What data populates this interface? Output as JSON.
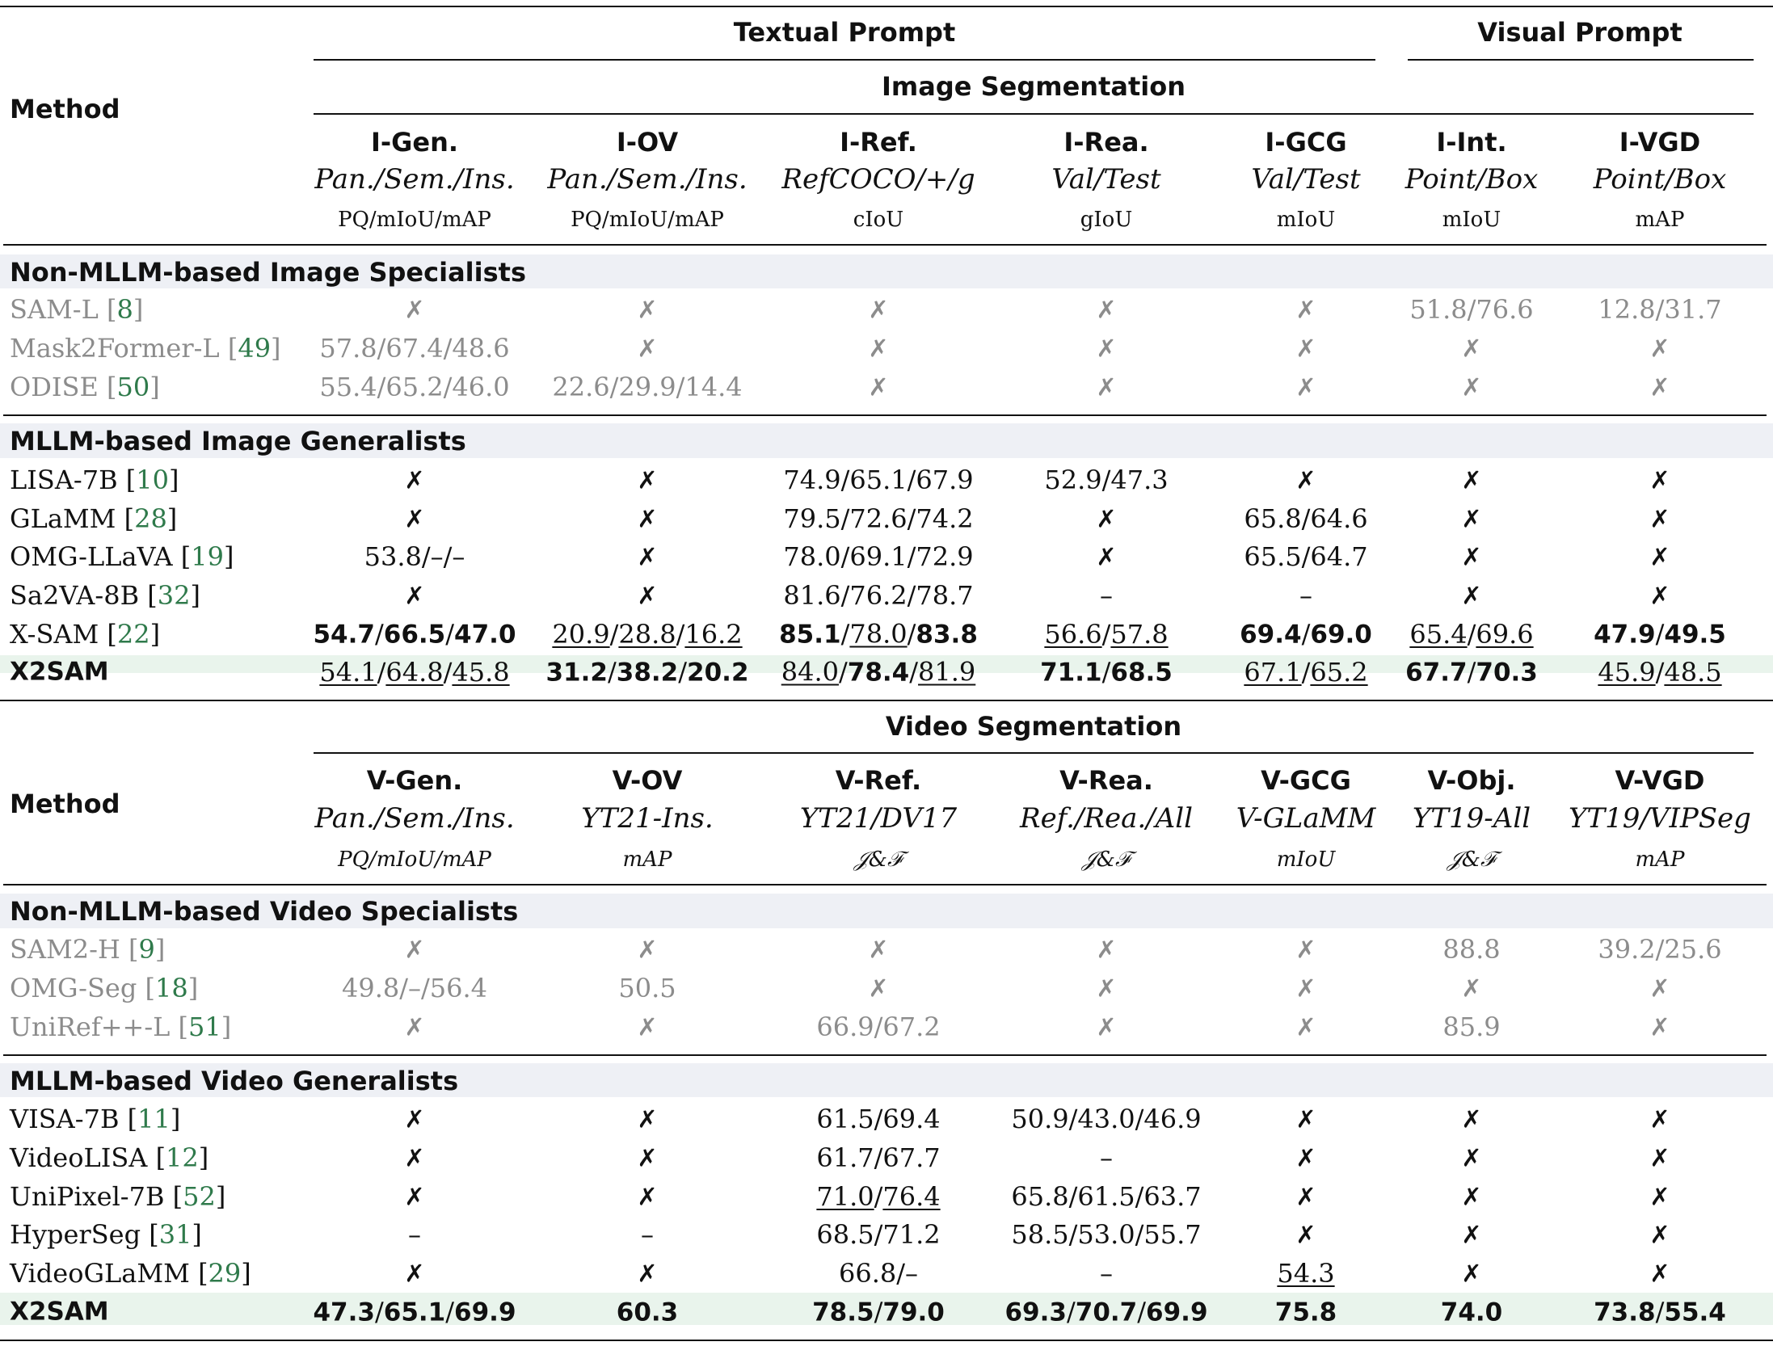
{
  "colors": {
    "section_band": "#eef0f5",
    "highlight_band": "#e9f4ec",
    "specialist_text": "#8c8c8c",
    "citation": "#2f7a4b",
    "rule": "#111111"
  },
  "header": {
    "method_label": "Method",
    "textual_prompt": "Textual Prompt",
    "visual_prompt": "Visual Prompt",
    "image_segmentation": "Image Segmentation",
    "video_segmentation": "Video Segmentation"
  },
  "image_columns": [
    {
      "name": "I-Gen.",
      "sub": "Pan./Sem./Ins.",
      "metric": "PQ/mIoU/mAP"
    },
    {
      "name": "I-OV",
      "sub": "Pan./Sem./Ins.",
      "metric": "PQ/mIoU/mAP"
    },
    {
      "name": "I-Ref.",
      "sub": "RefCOCO/+/g",
      "metric": "cIoU"
    },
    {
      "name": "I-Rea.",
      "sub": "Val/Test",
      "metric": "gIoU"
    },
    {
      "name": "I-GCG",
      "sub": "Val/Test",
      "metric": "mIoU"
    },
    {
      "name": "I-Int.",
      "sub": "Point/Box",
      "metric": "mIoU"
    },
    {
      "name": "I-VGD",
      "sub": "Point/Box",
      "metric": "mAP"
    }
  ],
  "video_columns": [
    {
      "name": "V-Gen.",
      "sub": "Pan./Sem./Ins.",
      "metric": "PQ/mIoU/mAP"
    },
    {
      "name": "V-OV",
      "sub": "YT21-Ins.",
      "metric": "mAP"
    },
    {
      "name": "V-Ref.",
      "sub": "YT21/DV17",
      "metric": "𝒥&ℱ"
    },
    {
      "name": "V-Rea.",
      "sub": "Ref./Rea./All",
      "metric": "𝒥&ℱ"
    },
    {
      "name": "V-GCG",
      "sub": "V-GLaMM",
      "metric": "mIoU"
    },
    {
      "name": "V-Obj.",
      "sub": "YT19-All",
      "metric": "𝒥&ℱ"
    },
    {
      "name": "V-VGD",
      "sub": "YT19/VIPSeg",
      "metric": "mAP"
    }
  ],
  "sections": [
    {
      "title": "Non-MLLM-based Image Specialists",
      "specialist": true,
      "rows": [
        {
          "method": "SAM-L",
          "ref": "8",
          "cells": [
            "✗",
            "✗",
            "✗",
            "✗",
            "✗",
            "51.8/76.6",
            "12.8/31.7"
          ]
        },
        {
          "method": "Mask2Former-L",
          "ref": "49",
          "cells": [
            "57.8/67.4/48.6",
            "✗",
            "✗",
            "✗",
            "✗",
            "✗",
            "✗"
          ]
        },
        {
          "method": "ODISE",
          "ref": "50",
          "cells": [
            "55.4/65.2/46.0",
            "22.6/29.9/14.4",
            "✗",
            "✗",
            "✗",
            "✗",
            "✗"
          ]
        }
      ]
    },
    {
      "title": "MLLM-based Image Generalists",
      "specialist": false,
      "rows": [
        {
          "method": "LISA-7B",
          "ref": "10",
          "cells": [
            "✗",
            "✗",
            "74.9/65.1/67.9",
            "52.9/47.3",
            "✗",
            "✗",
            "✗"
          ]
        },
        {
          "method": "GLaMM",
          "ref": "28",
          "cells": [
            "✗",
            "✗",
            "79.5/72.6/74.2",
            "✗",
            "65.8/64.6",
            "✗",
            "✗"
          ]
        },
        {
          "method": "OMG-LLaVA",
          "ref": "19",
          "cells": [
            "53.8/–/–",
            "✗",
            "78.0/69.1/72.9",
            "✗",
            "65.5/64.7",
            "✗",
            "✗"
          ]
        },
        {
          "method": "Sa2VA-8B",
          "ref": "32",
          "cells": [
            "✗",
            "✗",
            "81.6/76.2/78.7",
            "–",
            "–",
            "✗",
            "✗"
          ]
        },
        {
          "method": "X-SAM",
          "ref": "22",
          "cells": [
            "**54.7**/**66.5**/**47.0**",
            "__20.9__/__28.8__/__16.2__",
            "**85.1**/__78.0__/**83.8**",
            "__56.6__/__57.8__",
            "**69.4**/**69.0**",
            "__65.4__/__69.6__",
            "**47.9**/**49.5**"
          ]
        },
        {
          "method": "X2SAM",
          "ref": "",
          "ours": true,
          "cells": [
            "__54.1__/__64.8__/__45.8__",
            "**31.2**/**38.2**/**20.2**",
            "__84.0__/**78.4**/__81.9__",
            "**71.1**/**68.5**",
            "__67.1__/__65.2__",
            "**67.7**/**70.3**",
            "__45.9__/__48.5__"
          ]
        }
      ]
    },
    {
      "title": "Non-MLLM-based Video Specialists",
      "specialist": true,
      "rows": [
        {
          "method": "SAM2-H",
          "ref": "9",
          "cells": [
            "✗",
            "✗",
            "✗",
            "✗",
            "✗",
            "88.8",
            "39.2/25.6"
          ]
        },
        {
          "method": "OMG-Seg",
          "ref": "18",
          "cells": [
            "49.8/–/56.4",
            "50.5",
            "✗",
            "✗",
            "✗",
            "✗",
            "✗"
          ]
        },
        {
          "method": "UniRef++-L",
          "ref": "51",
          "cells": [
            "✗",
            "✗",
            "66.9/67.2",
            "✗",
            "✗",
            "85.9",
            "✗"
          ]
        }
      ]
    },
    {
      "title": "MLLM-based Video Generalists",
      "specialist": false,
      "rows": [
        {
          "method": "VISA-7B",
          "ref": "11",
          "cells": [
            "✗",
            "✗",
            "61.5/69.4",
            "50.9/43.0/46.9",
            "✗",
            "✗",
            "✗"
          ]
        },
        {
          "method": "VideoLISA",
          "ref": "12",
          "cells": [
            "✗",
            "✗",
            "61.7/67.7",
            "–",
            "✗",
            "✗",
            "✗"
          ]
        },
        {
          "method": "UniPixel-7B",
          "ref": "52",
          "cells": [
            "✗",
            "✗",
            "__71.0__/__76.4__",
            "65.8/61.5/63.7",
            "✗",
            "✗",
            "✗"
          ]
        },
        {
          "method": "HyperSeg",
          "ref": "31",
          "cells": [
            "–",
            "–",
            "68.5/71.2",
            "58.5/53.0/55.7",
            "✗",
            "✗",
            "✗"
          ]
        },
        {
          "method": "VideoGLaMM",
          "ref": "29",
          "cells": [
            "✗",
            "✗",
            "66.8/–",
            "–",
            "__54.3__",
            "✗",
            "✗"
          ]
        },
        {
          "method": "X2SAM",
          "ref": "",
          "ours": true,
          "cells": [
            "**47.3**/**65.1**/**69.9**",
            "**60.3**",
            "**78.5**/**79.0**",
            "**69.3**/**70.7**/**69.9**",
            "**75.8**",
            "**74.0**",
            "**73.8**/**55.4**"
          ]
        }
      ]
    }
  ]
}
